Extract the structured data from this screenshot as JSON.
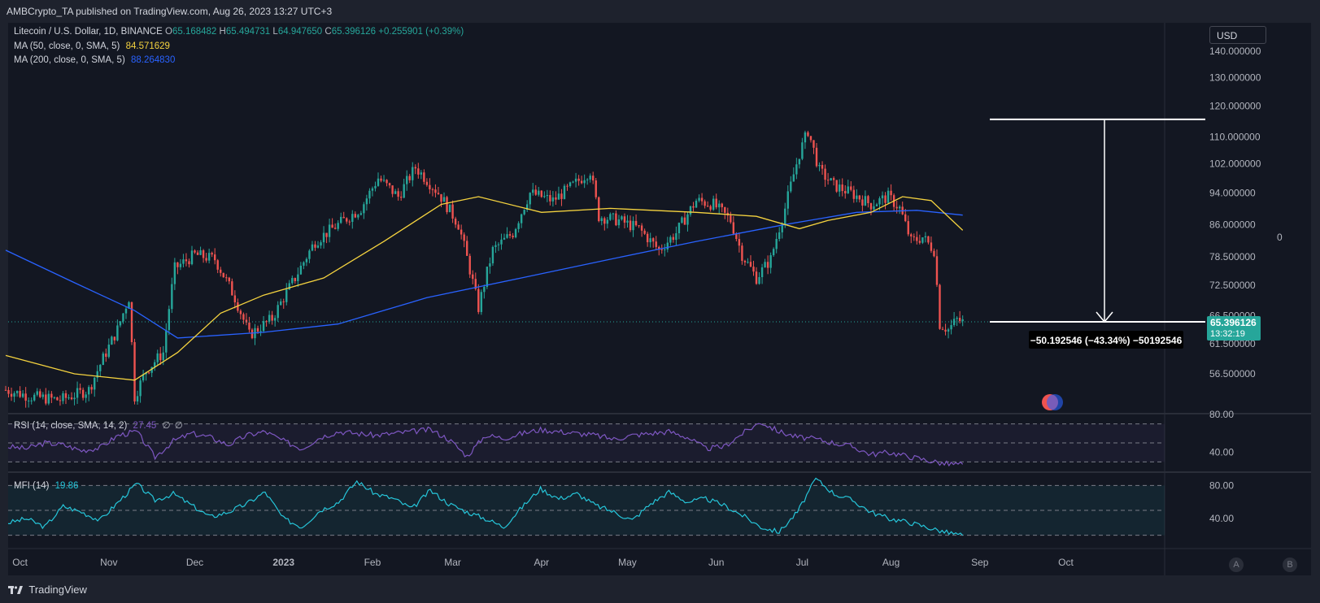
{
  "header": {
    "published": "AMBCrypto_TA published on TradingView.com, Aug 26, 2023 13:27 UTC+3"
  },
  "legend": {
    "symbol": "Litecoin / U.S. Dollar, 1D, BINANCE",
    "o_label": "O",
    "o_value": "65.168482",
    "h_label": "H",
    "h_value": "65.494731",
    "l_label": "L",
    "l_value": "64.947650",
    "c_label": "C",
    "c_value": "65.396126",
    "change": "+0.255901 (+0.39%)",
    "ma50_label": "MA (50, close, 0, SMA, 5)",
    "ma50_value": "84.571629",
    "ma200_label": "MA (200, close, 0, SMA, 5)",
    "ma200_value": "88.264830",
    "rsi_label": "RSI (14, close, SMA, 14, 2)",
    "rsi_value": "27.45",
    "rsi_na1": "∅",
    "rsi_na2": "∅",
    "mfi_label": "MFI (14)",
    "mfi_value": "19.86"
  },
  "currency_button": "USD",
  "price_tag": {
    "price": "65.396126",
    "countdown": "13:32:19"
  },
  "measure_label": "−50.192546 (−43.34%) −50192546",
  "side_zero": "0",
  "pane_buttons": {
    "a": "A",
    "b": "B"
  },
  "footer": {
    "brand": "TradingView"
  },
  "colors": {
    "background": "#131722",
    "up": "#26a69a",
    "down": "#ef5350",
    "ma50": "#f5d33f",
    "ma200": "#2962ff",
    "rsi": "#7e57c2",
    "mfi": "#26c6da"
  },
  "chart_data": [
    {
      "type": "candlestick",
      "title": "Litecoin / U.S. Dollar, 1D, BINANCE",
      "y_ticks": [
        "140.000000",
        "130.000000",
        "120.000000",
        "110.000000",
        "102.000000",
        "94.000000",
        "86.000000",
        "78.500000",
        "72.500000",
        "66.500000",
        "61.500000",
        "56.500000"
      ],
      "x_ticks": [
        "Oct",
        "Nov",
        "Dec",
        "2023",
        "Feb",
        "Mar",
        "Apr",
        "May",
        "Jun",
        "Jul",
        "Aug",
        "Sep",
        "Oct"
      ],
      "ylim": [
        52,
        148
      ],
      "close_series": [
        {
          "date": "2022-09-26",
          "close": 54
        },
        {
          "date": "2022-10-05",
          "close": 53
        },
        {
          "date": "2022-10-15",
          "close": 52.5
        },
        {
          "date": "2022-10-25",
          "close": 54
        },
        {
          "date": "2022-11-04",
          "close": 64
        },
        {
          "date": "2022-11-08",
          "close": 70
        },
        {
          "date": "2022-11-10",
          "close": 53
        },
        {
          "date": "2022-11-14",
          "close": 57
        },
        {
          "date": "2022-11-20",
          "close": 60
        },
        {
          "date": "2022-11-24",
          "close": 76
        },
        {
          "date": "2022-12-01",
          "close": 79
        },
        {
          "date": "2022-12-08",
          "close": 78
        },
        {
          "date": "2022-12-15",
          "close": 70
        },
        {
          "date": "2022-12-20",
          "close": 63
        },
        {
          "date": "2022-12-28",
          "close": 66
        },
        {
          "date": "2023-01-05",
          "close": 74
        },
        {
          "date": "2023-01-12",
          "close": 82
        },
        {
          "date": "2023-01-20",
          "close": 86
        },
        {
          "date": "2023-01-28",
          "close": 90
        },
        {
          "date": "2023-02-03",
          "close": 98
        },
        {
          "date": "2023-02-10",
          "close": 93
        },
        {
          "date": "2023-02-16",
          "close": 101
        },
        {
          "date": "2023-02-24",
          "close": 94
        },
        {
          "date": "2023-03-03",
          "close": 86
        },
        {
          "date": "2023-03-10",
          "close": 68
        },
        {
          "date": "2023-03-15",
          "close": 80
        },
        {
          "date": "2023-03-22",
          "close": 84
        },
        {
          "date": "2023-03-28",
          "close": 94
        },
        {
          "date": "2023-04-05",
          "close": 92
        },
        {
          "date": "2023-04-12",
          "close": 96
        },
        {
          "date": "2023-04-18",
          "close": 100
        },
        {
          "date": "2023-04-21",
          "close": 88
        },
        {
          "date": "2023-04-28",
          "close": 87
        },
        {
          "date": "2023-05-05",
          "close": 85
        },
        {
          "date": "2023-05-12",
          "close": 80
        },
        {
          "date": "2023-05-18",
          "close": 84
        },
        {
          "date": "2023-05-25",
          "close": 92
        },
        {
          "date": "2023-05-31",
          "close": 91
        },
        {
          "date": "2023-06-06",
          "close": 87
        },
        {
          "date": "2023-06-10",
          "close": 79
        },
        {
          "date": "2023-06-15",
          "close": 74
        },
        {
          "date": "2023-06-20",
          "close": 78
        },
        {
          "date": "2023-06-25",
          "close": 90
        },
        {
          "date": "2023-06-30",
          "close": 105
        },
        {
          "date": "2023-07-03",
          "close": 112
        },
        {
          "date": "2023-07-07",
          "close": 100
        },
        {
          "date": "2023-07-12",
          "close": 96
        },
        {
          "date": "2023-07-18",
          "close": 94
        },
        {
          "date": "2023-07-25",
          "close": 91
        },
        {
          "date": "2023-07-31",
          "close": 93
        },
        {
          "date": "2023-08-04",
          "close": 90
        },
        {
          "date": "2023-08-08",
          "close": 82
        },
        {
          "date": "2023-08-12",
          "close": 83
        },
        {
          "date": "2023-08-16",
          "close": 80
        },
        {
          "date": "2023-08-18",
          "close": 65
        },
        {
          "date": "2023-08-21",
          "close": 64
        },
        {
          "date": "2023-08-24",
          "close": 65.8
        },
        {
          "date": "2023-08-26",
          "close": 65.4
        }
      ],
      "ma50": [
        {
          "date": "2022-09-26",
          "value": 59.5
        },
        {
          "date": "2022-10-20",
          "value": 56.5
        },
        {
          "date": "2022-11-10",
          "value": 55.5
        },
        {
          "date": "2022-11-25",
          "value": 60
        },
        {
          "date": "2022-12-10",
          "value": 67
        },
        {
          "date": "2022-12-25",
          "value": 70.5
        },
        {
          "date": "2023-01-15",
          "value": 74
        },
        {
          "date": "2023-02-05",
          "value": 82
        },
        {
          "date": "2023-02-25",
          "value": 91
        },
        {
          "date": "2023-03-10",
          "value": 93
        },
        {
          "date": "2023-04-01",
          "value": 89
        },
        {
          "date": "2023-04-25",
          "value": 90
        },
        {
          "date": "2023-05-25",
          "value": 89
        },
        {
          "date": "2023-06-15",
          "value": 88
        },
        {
          "date": "2023-06-30",
          "value": 85
        },
        {
          "date": "2023-07-10",
          "value": 87
        },
        {
          "date": "2023-07-25",
          "value": 89
        },
        {
          "date": "2023-08-05",
          "value": 93
        },
        {
          "date": "2023-08-15",
          "value": 92
        },
        {
          "date": "2023-08-26",
          "value": 84.6
        }
      ],
      "ma200": [
        {
          "date": "2022-09-26",
          "value": 80
        },
        {
          "date": "2022-10-20",
          "value": 73
        },
        {
          "date": "2022-11-10",
          "value": 67.5
        },
        {
          "date": "2022-11-25",
          "value": 62.5
        },
        {
          "date": "2022-12-25",
          "value": 63.5
        },
        {
          "date": "2023-01-20",
          "value": 65
        },
        {
          "date": "2023-02-20",
          "value": 70
        },
        {
          "date": "2023-03-25",
          "value": 74
        },
        {
          "date": "2023-04-25",
          "value": 78
        },
        {
          "date": "2023-05-25",
          "value": 82
        },
        {
          "date": "2023-06-25",
          "value": 86
        },
        {
          "date": "2023-07-20",
          "value": 89
        },
        {
          "date": "2023-08-10",
          "value": 89.5
        },
        {
          "date": "2023-08-26",
          "value": 88.3
        }
      ],
      "measure": {
        "from": 115.59,
        "to": 65.4,
        "change": -50.192546,
        "percent": -43.34
      },
      "last_price": 65.396126
    },
    {
      "type": "line",
      "title": "RSI (14, close, SMA, 14, 2)",
      "y_ticks": [
        "80.00",
        "40.00"
      ],
      "bands": [
        70,
        50,
        30
      ],
      "ylim": [
        20,
        80
      ],
      "values": [
        46,
        44,
        50,
        48,
        42,
        45,
        58,
        62,
        35,
        52,
        60,
        56,
        48,
        58,
        62,
        52,
        44,
        56,
        62,
        60,
        58,
        60,
        62,
        64,
        54,
        36,
        58,
        55,
        60,
        64,
        62,
        60,
        58,
        54,
        58,
        60,
        62,
        56,
        44,
        46,
        60,
        72,
        62,
        56,
        54,
        50,
        46,
        38,
        40,
        36,
        32,
        28,
        27.45
      ]
    },
    {
      "type": "line",
      "title": "MFI (14)",
      "y_ticks": [
        "80.00",
        "40.00"
      ],
      "bands": [
        80,
        50,
        20
      ],
      "ylim": [
        5,
        95
      ],
      "values": [
        35,
        40,
        30,
        55,
        48,
        38,
        60,
        82,
        62,
        70,
        56,
        42,
        48,
        58,
        72,
        40,
        30,
        50,
        60,
        85,
        70,
        64,
        52,
        74,
        58,
        48,
        40,
        30,
        54,
        76,
        64,
        70,
        56,
        48,
        38,
        58,
        72,
        60,
        64,
        56,
        44,
        30,
        24,
        48,
        88,
        70,
        62,
        48,
        40,
        36,
        30,
        24,
        19.86
      ]
    }
  ]
}
